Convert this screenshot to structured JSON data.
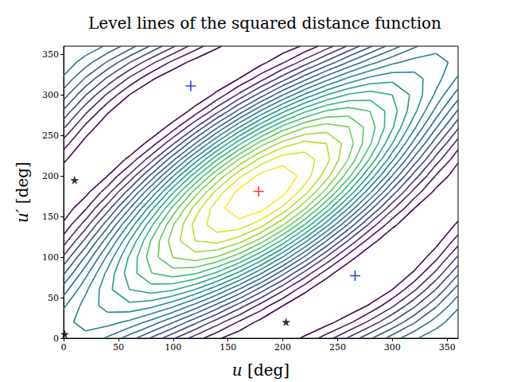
{
  "chart_data": {
    "type": "contour",
    "title": "Level lines of the squared distance function",
    "xlabel": "u [deg]",
    "ylabel": "u′ [deg]",
    "xlim": [
      0,
      360
    ],
    "ylim": [
      0,
      360
    ],
    "xticks": [
      0,
      50,
      100,
      150,
      200,
      250,
      300,
      350
    ],
    "yticks": [
      0,
      50,
      100,
      150,
      200,
      250,
      300,
      350
    ],
    "grid": false,
    "x": [
      0,
      20,
      40,
      60,
      80,
      100,
      120,
      140,
      160,
      180,
      200,
      220,
      240,
      260,
      280,
      300,
      320,
      340,
      360
    ],
    "y": [
      0,
      20,
      40,
      60,
      80,
      100,
      120,
      140,
      160,
      180,
      200,
      220,
      240,
      260,
      280,
      300,
      320,
      340,
      360
    ],
    "z": [
      [
        6.0,
        5.85,
        5.42,
        4.75,
        3.93,
        3.07,
        2.25,
        1.59,
        1.15,
        1.0,
        1.15,
        1.59,
        2.25,
        3.07,
        3.93,
        4.75,
        5.42,
        5.85,
        6.0
      ],
      [
        5.85,
        6.18,
        6.2,
        5.9,
        5.33,
        4.55,
        3.65,
        2.74,
        1.94,
        1.33,
        1.0,
        0.98,
        1.28,
        1.85,
        2.64,
        3.53,
        4.44,
        5.25,
        5.85
      ],
      [
        5.42,
        6.2,
        6.7,
        6.86,
        6.65,
        6.11,
        5.3,
        4.31,
        3.26,
        2.29,
        1.5,
        1.0,
        0.84,
        1.05,
        1.59,
        2.41,
        3.4,
        4.44,
        5.42
      ],
      [
        4.75,
        5.9,
        6.86,
        7.5,
        7.75,
        7.57,
        7.0,
        6.09,
        4.97,
        3.75,
        2.6,
        1.64,
        1.0,
        0.75,
        0.93,
        1.5,
        2.41,
        3.53,
        4.75
      ],
      [
        3.93,
        5.33,
        6.65,
        7.75,
        8.48,
        8.76,
        8.55,
        7.89,
        6.84,
        5.55,
        4.15,
        2.82,
        1.73,
        1.0,
        0.72,
        0.93,
        1.59,
        2.64,
        3.93
      ],
      [
        3.07,
        4.55,
        6.11,
        7.57,
        8.76,
        9.52,
        9.77,
        9.47,
        8.67,
        7.45,
        5.98,
        4.41,
        2.95,
        1.76,
        1.0,
        0.75,
        1.05,
        1.85,
        3.07
      ],
      [
        2.25,
        3.65,
        5.3,
        7.0,
        8.55,
        9.77,
        10.5,
        10.66,
        10.22,
        9.25,
        7.85,
        6.2,
        4.5,
        2.95,
        1.73,
        1.0,
        0.84,
        1.28,
        2.25
      ],
      [
        1.59,
        2.74,
        4.31,
        6.09,
        7.89,
        9.47,
        10.66,
        11.3,
        11.32,
        10.71,
        9.56,
        7.99,
        6.2,
        4.41,
        2.82,
        1.64,
        1.0,
        0.98,
        1.59
      ],
      [
        1.15,
        1.94,
        3.26,
        4.97,
        6.84,
        8.67,
        10.22,
        11.32,
        11.82,
        11.67,
        10.88,
        9.56,
        7.85,
        5.98,
        4.15,
        2.6,
        1.5,
        1.0,
        1.15
      ],
      [
        1.0,
        1.33,
        2.29,
        3.75,
        5.55,
        7.45,
        9.25,
        10.71,
        11.67,
        12.0,
        11.67,
        10.71,
        9.25,
        7.45,
        5.55,
        3.75,
        2.29,
        1.33,
        1.0
      ],
      [
        1.15,
        1.0,
        1.5,
        2.6,
        4.15,
        5.98,
        7.85,
        9.56,
        10.88,
        11.67,
        11.82,
        11.32,
        10.22,
        8.67,
        6.84,
        4.97,
        3.26,
        1.94,
        1.15
      ],
      [
        1.59,
        0.98,
        1.0,
        1.64,
        2.82,
        4.41,
        6.2,
        7.99,
        9.56,
        10.71,
        11.32,
        11.3,
        10.66,
        9.47,
        7.89,
        6.09,
        4.31,
        2.74,
        1.59
      ],
      [
        2.25,
        1.28,
        0.84,
        1.0,
        1.73,
        2.95,
        4.5,
        6.2,
        7.85,
        9.25,
        10.22,
        10.66,
        10.5,
        9.77,
        8.55,
        7.0,
        5.3,
        3.65,
        2.25
      ],
      [
        3.07,
        1.85,
        1.05,
        0.75,
        1.0,
        1.76,
        2.95,
        4.41,
        5.98,
        7.45,
        8.67,
        9.47,
        9.77,
        9.52,
        8.76,
        7.57,
        6.11,
        4.55,
        3.07
      ],
      [
        3.93,
        2.64,
        1.59,
        0.93,
        0.72,
        1.0,
        1.73,
        2.82,
        4.15,
        5.55,
        6.84,
        7.89,
        8.55,
        8.76,
        8.48,
        7.75,
        6.65,
        5.33,
        3.93
      ],
      [
        4.75,
        3.53,
        2.41,
        1.5,
        0.93,
        0.75,
        1.0,
        1.64,
        2.6,
        3.75,
        4.97,
        6.09,
        7.0,
        7.57,
        7.75,
        7.5,
        6.86,
        5.9,
        4.75
      ],
      [
        5.42,
        4.44,
        3.4,
        2.41,
        1.59,
        1.05,
        0.84,
        1.0,
        1.5,
        2.29,
        3.26,
        4.31,
        5.3,
        6.11,
        6.65,
        6.86,
        6.7,
        6.2,
        5.42
      ],
      [
        5.85,
        5.25,
        4.44,
        3.53,
        2.64,
        1.85,
        1.28,
        0.98,
        1.0,
        1.33,
        1.94,
        2.74,
        3.65,
        4.55,
        5.33,
        5.9,
        6.2,
        6.18,
        5.85
      ],
      [
        6.0,
        5.85,
        5.42,
        4.75,
        3.93,
        3.07,
        2.25,
        1.59,
        1.15,
        1.0,
        1.15,
        1.59,
        2.25,
        3.07,
        3.93,
        4.75,
        5.42,
        5.85,
        6.0
      ]
    ],
    "levels": [
      1.5,
      2,
      2.5,
      3,
      3.5,
      4,
      4.5,
      5,
      5.5,
      6,
      6.5,
      7,
      7.5,
      8,
      8.5,
      9,
      9.5,
      10,
      10.5,
      11,
      11.5
    ],
    "series": [
      {
        "type": "scatter",
        "marker": "plus",
        "color": "#ff0000",
        "x": [
          178
        ],
        "y": [
          181
        ]
      },
      {
        "type": "scatter",
        "marker": "plus",
        "color": "#0000ff",
        "x": [
          116,
          266
        ],
        "y": [
          311,
          77
        ]
      },
      {
        "type": "scatter",
        "marker": "star",
        "color": "#000000",
        "x": [
          10,
          1,
          203
        ],
        "y": [
          195,
          5,
          20
        ]
      }
    ]
  }
}
